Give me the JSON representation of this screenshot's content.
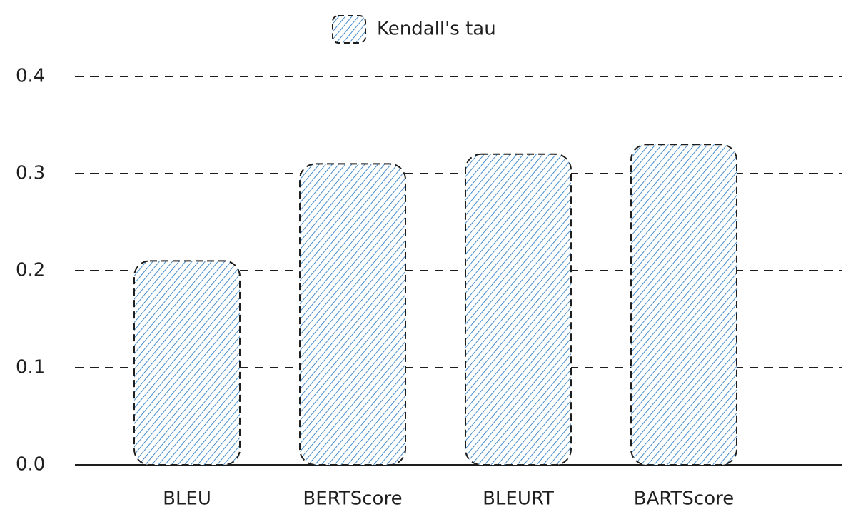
{
  "chart_data": {
    "type": "bar",
    "categories": [
      "BLEU",
      "BERTScore",
      "BLEURT",
      "BARTScore"
    ],
    "series": [
      {
        "name": "Kendall's tau",
        "color": "#1971c2",
        "values": [
          0.21,
          0.31,
          0.32,
          0.33
        ]
      }
    ],
    "ylim": [
      0,
      0.4
    ],
    "yticks": [
      {
        "value": 0,
        "label": "0.0"
      },
      0.1,
      0.2,
      0.3,
      0.4
    ],
    "grid": true,
    "legend": "top"
  }
}
